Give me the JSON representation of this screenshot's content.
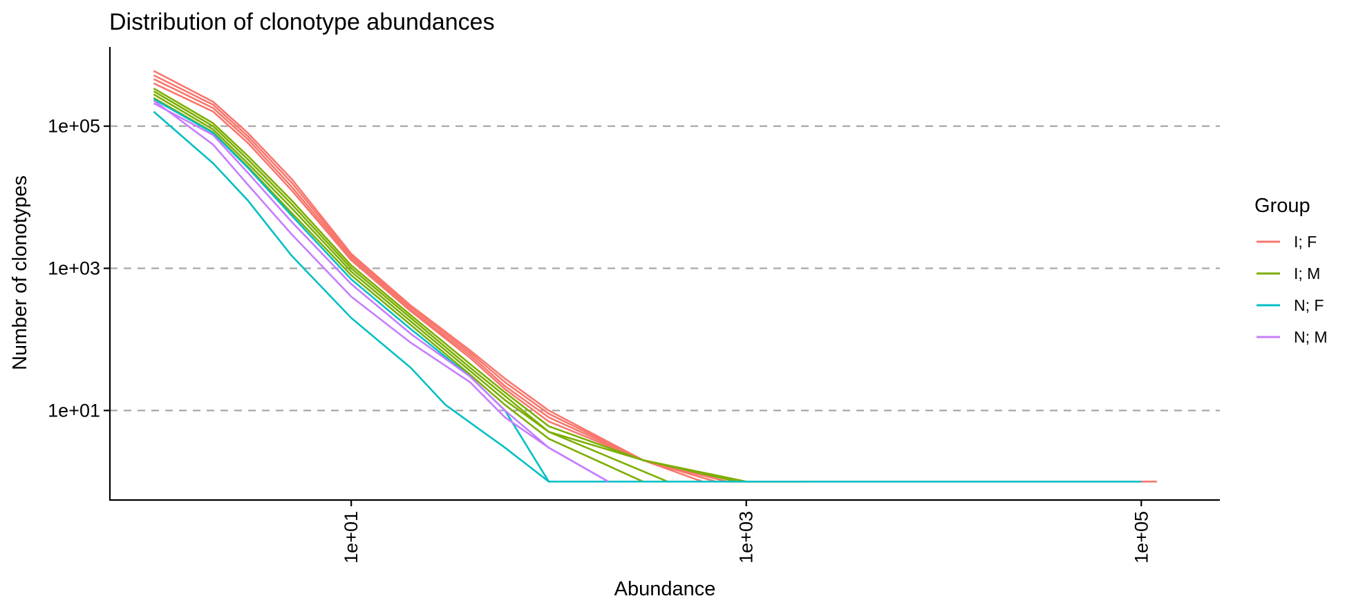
{
  "chart_data": {
    "type": "line",
    "title": "Distribution of clonotype abundances",
    "xlabel": "Abundance",
    "ylabel": "Number of clonotypes",
    "x_scale": "log10",
    "y_scale": "log10",
    "xlim": [
      0.6,
      250000
    ],
    "ylim": [
      0.55,
      1300000
    ],
    "x_ticks": [
      10,
      1000,
      100000
    ],
    "x_tick_labels": [
      "1e+01",
      "1e+03",
      "1e+05"
    ],
    "y_ticks": [
      10,
      1000,
      100000
    ],
    "y_tick_labels": [
      "1e+01",
      "1e+03",
      "1e+05"
    ],
    "grid": "horizontal dashed at major y ticks",
    "legend": {
      "title": "Group",
      "placement": "right"
    },
    "series": [
      {
        "name": "I; F",
        "color": "#F8766D",
        "lines": [
          {
            "x": [
              1,
              2,
              3,
              5,
              10,
              20,
              40,
              60,
              100,
              300,
              800,
              100000,
              120000
            ],
            "y": [
              600000,
              220000,
              80000,
              18000,
              1600,
              300,
              70,
              28,
              10,
              2,
              1,
              1,
              1
            ]
          },
          {
            "x": [
              1,
              2,
              3,
              5,
              10,
              20,
              40,
              60,
              100,
              300,
              800
            ],
            "y": [
              520000,
              200000,
              72000,
              16000,
              1500,
              280,
              65,
              25,
              9,
              2,
              1
            ]
          },
          {
            "x": [
              1,
              2,
              3,
              5,
              10,
              20,
              40,
              60,
              100,
              300,
              700
            ],
            "y": [
              460000,
              180000,
              65000,
              14000,
              1400,
              260,
              60,
              22,
              8,
              2,
              1
            ]
          },
          {
            "x": [
              1,
              2,
              3,
              5,
              10,
              20,
              40,
              60,
              100,
              300,
              600
            ],
            "y": [
              400000,
              160000,
              58000,
              12500,
              1300,
              250,
              55,
              20,
              7,
              2,
              1
            ]
          }
        ]
      },
      {
        "name": "I; M",
        "color": "#7CAE00",
        "lines": [
          {
            "x": [
              1,
              2,
              3,
              5,
              10,
              20,
              40,
              60,
              100,
              300,
              1000,
              2000
            ],
            "y": [
              340000,
              110000,
              38000,
              9000,
              1100,
              220,
              45,
              18,
              6,
              2,
              1,
              1
            ]
          },
          {
            "x": [
              1,
              2,
              3,
              5,
              10,
              20,
              40,
              60,
              100,
              300,
              900
            ],
            "y": [
              310000,
              100000,
              34000,
              8000,
              1000,
              200,
              40,
              16,
              5,
              2,
              1
            ]
          },
          {
            "x": [
              1,
              2,
              3,
              5,
              10,
              20,
              40,
              60,
              100,
              400
            ],
            "y": [
              280000,
              90000,
              30000,
              7000,
              900,
              180,
              36,
              14,
              5,
              1
            ]
          },
          {
            "x": [
              1,
              2,
              3,
              5,
              10,
              20,
              40,
              60,
              100,
              300
            ],
            "y": [
              250000,
              82000,
              27000,
              6000,
              800,
              160,
              32,
              12,
              4,
              1
            ]
          }
        ]
      },
      {
        "name": "N; F",
        "color": "#00BFC4",
        "lines": [
          {
            "x": [
              1,
              2,
              3,
              5,
              10,
              20,
              30,
              60,
              100,
              100000
            ],
            "y": [
              160000,
              30000,
              9000,
              1500,
              200,
              40,
              12,
              3,
              1,
              1
            ]
          },
          {
            "x": [
              1,
              2,
              3,
              5,
              10,
              20,
              40,
              60,
              100
            ],
            "y": [
              240000,
              80000,
              26000,
              5500,
              700,
              140,
              30,
              10,
              1
            ]
          }
        ]
      },
      {
        "name": "N; M",
        "color": "#C77CFF",
        "lines": [
          {
            "x": [
              1,
              2,
              3,
              5,
              10,
              20,
              40,
              60,
              100,
              200
            ],
            "y": [
              230000,
              55000,
              15000,
              3000,
              400,
              90,
              25,
              8,
              3,
              1
            ]
          },
          {
            "x": [
              1,
              2,
              3,
              5,
              10,
              20,
              40,
              60,
              100,
              200
            ],
            "y": [
              210000,
              75000,
              22000,
              4500,
              600,
              120,
              30,
              10,
              3,
              1
            ]
          }
        ]
      }
    ]
  }
}
